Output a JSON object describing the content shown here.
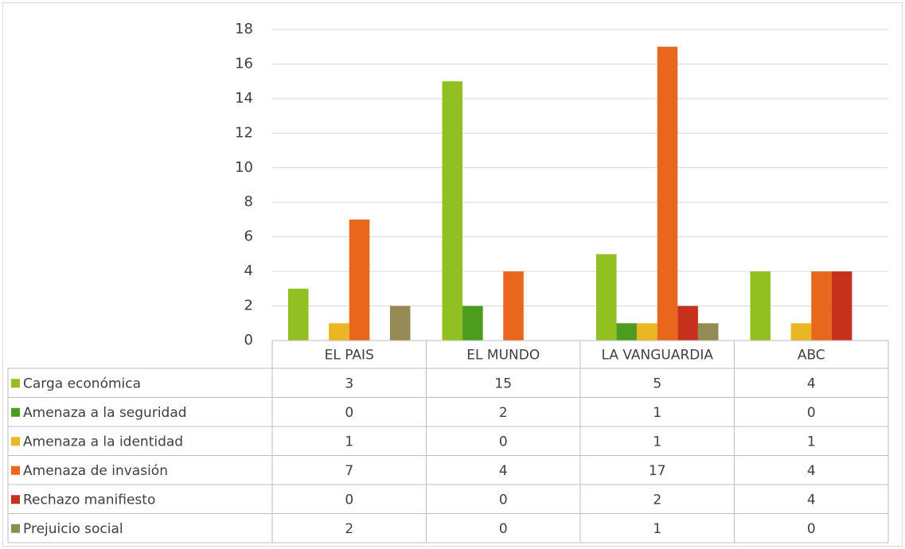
{
  "chart_data": {
    "type": "bar",
    "categories": [
      "EL PAIS",
      "EL MUNDO",
      "LA VANGUARDIA",
      "ABC"
    ],
    "series": [
      {
        "name": "Carga económica",
        "color": "#92c022",
        "values": [
          3,
          15,
          5,
          4
        ]
      },
      {
        "name": "Amenaza a la seguridad",
        "color": "#4c9c1f",
        "values": [
          0,
          2,
          1,
          0
        ]
      },
      {
        "name": "Amenaza a la identidad",
        "color": "#ebb623",
        "values": [
          1,
          0,
          1,
          1
        ]
      },
      {
        "name": "Amenaza de invasión",
        "color": "#e8671c",
        "values": [
          7,
          4,
          17,
          4
        ]
      },
      {
        "name": "Rechazo manifiesto",
        "color": "#c5311c",
        "values": [
          0,
          0,
          2,
          4
        ]
      },
      {
        "name": "Prejuicio social",
        "color": "#948a54",
        "values": [
          2,
          0,
          1,
          0
        ]
      }
    ],
    "ylim": [
      0,
      18
    ],
    "yticks": [
      0,
      2,
      4,
      6,
      8,
      10,
      12,
      14,
      16,
      18
    ],
    "grid": true
  }
}
